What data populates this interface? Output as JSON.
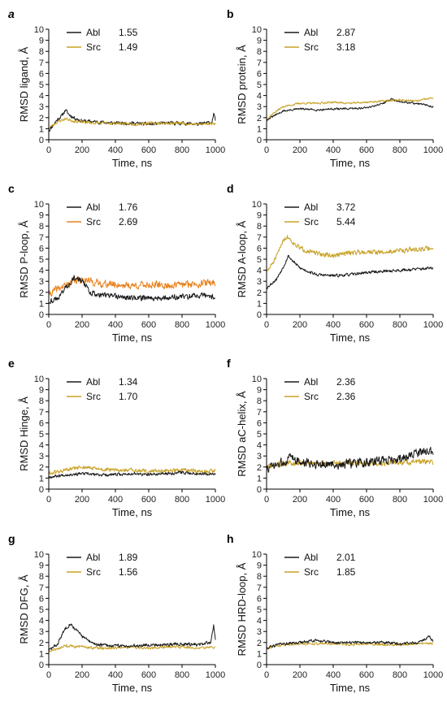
{
  "chart_data": [
    {
      "panel": "a",
      "type": "line",
      "xlabel": "Time, ns",
      "ylabel": "RMSD ligand, Å",
      "xlim": [
        0,
        1000
      ],
      "ylim": [
        0,
        10
      ],
      "xticks": [
        0,
        200,
        400,
        600,
        800,
        1000
      ],
      "yticks": [
        0,
        1,
        2,
        3,
        4,
        5,
        6,
        7,
        8,
        9,
        10
      ],
      "legend_position": "top-left",
      "series": [
        {
          "name": "Abl",
          "legend_value": "1.55",
          "color": "#1a1a1a",
          "seed": 11,
          "noise": 0.22,
          "x": [
            0,
            20,
            50,
            80,
            100,
            120,
            150,
            200,
            300,
            400,
            500,
            600,
            700,
            800,
            900,
            980,
            990,
            1000
          ],
          "values": [
            0.8,
            1.2,
            1.8,
            2.2,
            2.7,
            2.3,
            2.0,
            1.7,
            1.6,
            1.5,
            1.5,
            1.4,
            1.5,
            1.5,
            1.4,
            1.6,
            2.4,
            1.7
          ]
        },
        {
          "name": "Src",
          "legend_value": "1.49",
          "color": "#c9a227",
          "seed": 23,
          "noise": 0.18,
          "x": [
            0,
            20,
            50,
            100,
            150,
            200,
            300,
            400,
            500,
            600,
            700,
            800,
            900,
            1000
          ],
          "values": [
            1.0,
            1.3,
            1.6,
            1.9,
            1.7,
            1.6,
            1.5,
            1.5,
            1.4,
            1.5,
            1.5,
            1.5,
            1.4,
            1.5
          ]
        }
      ]
    },
    {
      "panel": "b",
      "type": "line",
      "xlabel": "Time, ns",
      "ylabel": "RMSD protein, Å",
      "xlim": [
        0,
        1000
      ],
      "ylim": [
        0,
        10
      ],
      "xticks": [
        0,
        200,
        400,
        600,
        800,
        1000
      ],
      "yticks": [
        0,
        1,
        2,
        3,
        4,
        5,
        6,
        7,
        8,
        9,
        10
      ],
      "legend_position": "top-left",
      "series": [
        {
          "name": "Abl",
          "legend_value": "2.87",
          "color": "#1a1a1a",
          "seed": 31,
          "noise": 0.12,
          "x": [
            0,
            50,
            100,
            200,
            300,
            400,
            500,
            600,
            700,
            750,
            800,
            900,
            1000
          ],
          "values": [
            1.8,
            2.2,
            2.6,
            2.8,
            2.7,
            2.8,
            2.8,
            2.9,
            3.3,
            3.7,
            3.4,
            3.3,
            3.0
          ]
        },
        {
          "name": "Src",
          "legend_value": "3.18",
          "color": "#c9a227",
          "seed": 37,
          "noise": 0.12,
          "x": [
            0,
            50,
            100,
            200,
            300,
            400,
            500,
            600,
            700,
            800,
            900,
            1000
          ],
          "values": [
            1.9,
            2.5,
            3.0,
            3.3,
            3.3,
            3.4,
            3.3,
            3.4,
            3.5,
            3.6,
            3.5,
            3.8
          ]
        }
      ]
    },
    {
      "panel": "c",
      "type": "line",
      "xlabel": "Time, ns",
      "ylabel": "RMSD P-loop, Å",
      "xlim": [
        0,
        1000
      ],
      "ylim": [
        0,
        10
      ],
      "xticks": [
        0,
        200,
        400,
        600,
        800,
        1000
      ],
      "yticks": [
        0,
        1,
        2,
        3,
        4,
        5,
        6,
        7,
        8,
        9,
        10
      ],
      "legend_position": "top-left",
      "series": [
        {
          "name": "Src",
          "legend_value": "2.69",
          "color": "#e8821e",
          "seed": 41,
          "noise": 0.45,
          "x": [
            0,
            50,
            100,
            150,
            200,
            250,
            300,
            400,
            500,
            600,
            700,
            800,
            900,
            1000
          ],
          "values": [
            1.8,
            2.3,
            2.6,
            3.0,
            3.2,
            3.0,
            2.8,
            2.7,
            2.6,
            2.7,
            2.6,
            2.7,
            2.8,
            2.9
          ]
        },
        {
          "name": "Abl",
          "legend_value": "1.76",
          "color": "#1a1a1a",
          "seed": 43,
          "noise": 0.35,
          "x": [
            0,
            50,
            100,
            150,
            200,
            250,
            300,
            400,
            500,
            600,
            700,
            800,
            900,
            1000
          ],
          "values": [
            1.2,
            1.4,
            2.4,
            3.3,
            3.0,
            2.0,
            1.8,
            1.6,
            1.5,
            1.5,
            1.5,
            1.6,
            1.7,
            1.6
          ]
        }
      ]
    },
    {
      "panel": "d",
      "type": "line",
      "xlabel": "Time, ns",
      "ylabel": "RMSD A-loop, Å",
      "xlim": [
        0,
        1000
      ],
      "ylim": [
        0,
        10
      ],
      "xticks": [
        0,
        200,
        400,
        600,
        800,
        1000
      ],
      "yticks": [
        0,
        1,
        2,
        3,
        4,
        5,
        6,
        7,
        8,
        9,
        10
      ],
      "legend_position": "top-left",
      "series": [
        {
          "name": "Src",
          "legend_value": "5.44",
          "color": "#c9a227",
          "seed": 51,
          "noise": 0.3,
          "x": [
            0,
            30,
            60,
            100,
            130,
            160,
            200,
            300,
            400,
            500,
            600,
            700,
            800,
            900,
            1000
          ],
          "values": [
            3.8,
            4.5,
            5.2,
            6.8,
            7.0,
            6.5,
            6.0,
            5.5,
            5.3,
            5.6,
            5.7,
            5.6,
            5.8,
            5.9,
            6.0
          ]
        },
        {
          "name": "Abl",
          "legend_value": "3.72",
          "color": "#1a1a1a",
          "seed": 53,
          "noise": 0.18,
          "x": [
            0,
            30,
            60,
            100,
            130,
            160,
            200,
            250,
            300,
            400,
            500,
            600,
            700,
            800,
            900,
            1000
          ],
          "values": [
            2.4,
            2.8,
            3.2,
            4.3,
            5.3,
            4.8,
            4.2,
            3.9,
            3.6,
            3.5,
            3.6,
            3.8,
            3.9,
            4.0,
            4.1,
            4.2
          ]
        }
      ]
    },
    {
      "panel": "e",
      "type": "line",
      "xlabel": "Time, ns",
      "ylabel": "RMSD Hinge, Å",
      "xlim": [
        0,
        1000
      ],
      "ylim": [
        0,
        10
      ],
      "xticks": [
        0,
        200,
        400,
        600,
        800,
        1000
      ],
      "yticks": [
        0,
        1,
        2,
        3,
        4,
        5,
        6,
        7,
        8,
        9,
        10
      ],
      "legend_position": "top-left",
      "series": [
        {
          "name": "Src",
          "legend_value": "1.70",
          "color": "#c9a227",
          "seed": 61,
          "noise": 0.25,
          "x": [
            0,
            100,
            200,
            300,
            400,
            500,
            600,
            700,
            800,
            900,
            1000
          ],
          "values": [
            1.4,
            1.7,
            2.0,
            1.8,
            1.7,
            1.7,
            1.6,
            1.7,
            1.7,
            1.6,
            1.7
          ]
        },
        {
          "name": "Abl",
          "legend_value": "1.34",
          "color": "#1a1a1a",
          "seed": 67,
          "noise": 0.18,
          "x": [
            0,
            100,
            200,
            300,
            400,
            500,
            600,
            700,
            800,
            900,
            1000
          ],
          "values": [
            1.1,
            1.3,
            1.4,
            1.3,
            1.3,
            1.4,
            1.3,
            1.4,
            1.5,
            1.4,
            1.4
          ]
        }
      ]
    },
    {
      "panel": "f",
      "type": "line",
      "xlabel": "Time, ns",
      "ylabel": "RMSD aC-helix, Å",
      "xlim": [
        0,
        1000
      ],
      "ylim": [
        0,
        10
      ],
      "xticks": [
        0,
        200,
        400,
        600,
        800,
        1000
      ],
      "yticks": [
        0,
        1,
        2,
        3,
        4,
        5,
        6,
        7,
        8,
        9,
        10
      ],
      "legend_position": "top-left",
      "series": [
        {
          "name": "Src",
          "legend_value": "2.36",
          "color": "#c9a227",
          "seed": 71,
          "noise": 0.35,
          "x": [
            0,
            100,
            200,
            300,
            400,
            500,
            600,
            700,
            800,
            900,
            1000
          ],
          "values": [
            2.0,
            2.3,
            2.4,
            2.3,
            2.3,
            2.4,
            2.3,
            2.4,
            2.4,
            2.5,
            2.4
          ]
        },
        {
          "name": "Abl",
          "legend_value": "2.36",
          "color": "#1a1a1a",
          "seed": 73,
          "noise": 0.55,
          "x": [
            0,
            100,
            150,
            200,
            300,
            400,
            500,
            600,
            700,
            800,
            900,
            950,
            1000
          ],
          "values": [
            1.8,
            2.4,
            3.0,
            2.4,
            2.3,
            2.2,
            2.3,
            2.4,
            2.6,
            2.7,
            3.2,
            3.5,
            3.3
          ]
        }
      ]
    },
    {
      "panel": "g",
      "type": "line",
      "xlabel": "Time, ns",
      "ylabel": "RMSD DFG, Å",
      "xlim": [
        0,
        1000
      ],
      "ylim": [
        0,
        10
      ],
      "xticks": [
        0,
        200,
        400,
        600,
        800,
        1000
      ],
      "yticks": [
        0,
        1,
        2,
        3,
        4,
        5,
        6,
        7,
        8,
        9,
        10
      ],
      "legend_position": "top-left",
      "series": [
        {
          "name": "Src",
          "legend_value": "1.56",
          "color": "#c9a227",
          "seed": 81,
          "noise": 0.18,
          "x": [
            0,
            100,
            200,
            300,
            400,
            500,
            600,
            700,
            800,
            900,
            1000
          ],
          "values": [
            1.2,
            1.7,
            1.6,
            1.5,
            1.5,
            1.6,
            1.5,
            1.6,
            1.6,
            1.5,
            1.6
          ]
        },
        {
          "name": "Abl",
          "legend_value": "1.89",
          "color": "#1a1a1a",
          "seed": 83,
          "noise": 0.2,
          "x": [
            0,
            50,
            100,
            130,
            160,
            200,
            250,
            300,
            400,
            500,
            600,
            700,
            800,
            900,
            970,
            990,
            1000
          ],
          "values": [
            1.3,
            1.8,
            3.3,
            3.7,
            3.2,
            2.6,
            2.0,
            1.8,
            1.7,
            1.7,
            1.8,
            1.8,
            1.9,
            1.8,
            2.0,
            3.5,
            2.2
          ]
        }
      ]
    },
    {
      "panel": "h",
      "type": "line",
      "xlabel": "Time, ns",
      "ylabel": "RMSD HRD-loop, Å",
      "xlim": [
        0,
        1000
      ],
      "ylim": [
        0,
        10
      ],
      "xticks": [
        0,
        200,
        400,
        600,
        800,
        1000
      ],
      "yticks": [
        0,
        1,
        2,
        3,
        4,
        5,
        6,
        7,
        8,
        9,
        10
      ],
      "legend_position": "top-left",
      "series": [
        {
          "name": "Src",
          "legend_value": "1.85",
          "color": "#c9a227",
          "seed": 91,
          "noise": 0.15,
          "x": [
            0,
            100,
            200,
            300,
            400,
            500,
            600,
            700,
            800,
            900,
            1000
          ],
          "values": [
            1.5,
            1.8,
            1.9,
            1.9,
            1.9,
            1.8,
            1.9,
            1.8,
            1.8,
            1.9,
            1.9
          ]
        },
        {
          "name": "Abl",
          "legend_value": "2.01",
          "color": "#1a1a1a",
          "seed": 93,
          "noise": 0.17,
          "x": [
            0,
            100,
            200,
            300,
            400,
            500,
            600,
            700,
            800,
            900,
            980,
            1000
          ],
          "values": [
            1.5,
            1.9,
            2.0,
            2.2,
            2.0,
            2.0,
            2.0,
            2.0,
            1.9,
            2.0,
            2.5,
            2.1
          ]
        }
      ]
    }
  ]
}
